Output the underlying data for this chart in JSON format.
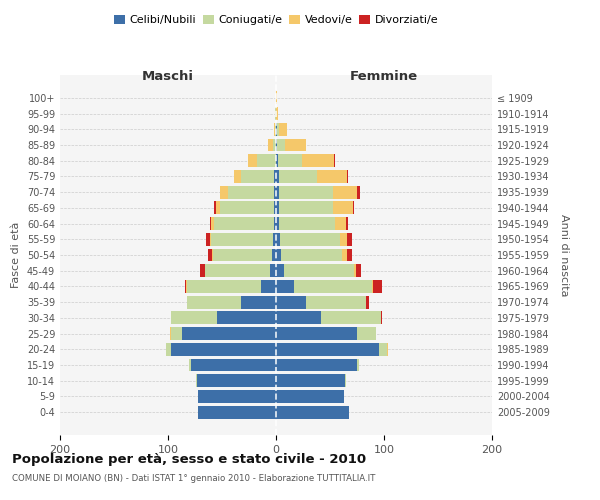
{
  "age_groups": [
    "0-4",
    "5-9",
    "10-14",
    "15-19",
    "20-24",
    "25-29",
    "30-34",
    "35-39",
    "40-44",
    "45-49",
    "50-54",
    "55-59",
    "60-64",
    "65-69",
    "70-74",
    "75-79",
    "80-84",
    "85-89",
    "90-94",
    "95-99",
    "100+"
  ],
  "birth_years": [
    "2005-2009",
    "2000-2004",
    "1995-1999",
    "1990-1994",
    "1985-1989",
    "1980-1984",
    "1975-1979",
    "1970-1974",
    "1965-1969",
    "1960-1964",
    "1955-1959",
    "1950-1954",
    "1945-1949",
    "1940-1944",
    "1935-1939",
    "1930-1934",
    "1925-1929",
    "1920-1924",
    "1915-1919",
    "1910-1914",
    "≤ 1909"
  ],
  "male_celibi": [
    72,
    72,
    73,
    79,
    97,
    87,
    55,
    32,
    14,
    6,
    4,
    3,
    2,
    2,
    2,
    2,
    0,
    0,
    0,
    0,
    0
  ],
  "male_coniugati": [
    0,
    0,
    1,
    2,
    5,
    10,
    42,
    50,
    68,
    60,
    54,
    57,
    55,
    50,
    42,
    30,
    18,
    3,
    1,
    1,
    0
  ],
  "male_vedovi": [
    0,
    0,
    0,
    0,
    0,
    1,
    0,
    0,
    1,
    0,
    1,
    1,
    3,
    4,
    8,
    7,
    8,
    4,
    1,
    0,
    0
  ],
  "male_divorziati": [
    0,
    0,
    0,
    0,
    0,
    0,
    0,
    0,
    1,
    4,
    4,
    4,
    1,
    1,
    0,
    0,
    0,
    0,
    0,
    0,
    0
  ],
  "female_celibi": [
    68,
    63,
    64,
    75,
    95,
    75,
    42,
    28,
    17,
    7,
    5,
    4,
    3,
    3,
    3,
    3,
    2,
    1,
    1,
    0,
    0
  ],
  "female_coniugati": [
    0,
    0,
    1,
    2,
    8,
    18,
    55,
    55,
    72,
    65,
    56,
    55,
    52,
    50,
    50,
    35,
    22,
    7,
    2,
    0,
    0
  ],
  "female_vedovi": [
    0,
    0,
    0,
    0,
    1,
    0,
    0,
    0,
    1,
    2,
    5,
    7,
    10,
    18,
    22,
    28,
    30,
    20,
    7,
    2,
    1
  ],
  "female_divorziati": [
    0,
    0,
    0,
    0,
    0,
    0,
    1,
    3,
    8,
    5,
    4,
    4,
    2,
    1,
    3,
    1,
    1,
    0,
    0,
    0,
    0
  ],
  "color_celibi": "#3d6fa8",
  "color_coniugati": "#c5d9a0",
  "color_vedovi": "#f5c86a",
  "color_divorziati": "#cc2222",
  "title": "Popolazione per età, sesso e stato civile - 2010",
  "subtitle": "COMUNE DI MOIANO (BN) - Dati ISTAT 1° gennaio 2010 - Elaborazione TUTTITALIA.IT",
  "xlabel_left": "Maschi",
  "xlabel_right": "Femmine",
  "ylabel_left": "Fasce di età",
  "ylabel_right": "Anni di nascita",
  "xlim": 200,
  "bg_color": "#f5f5f5",
  "grid_color": "#cccccc"
}
